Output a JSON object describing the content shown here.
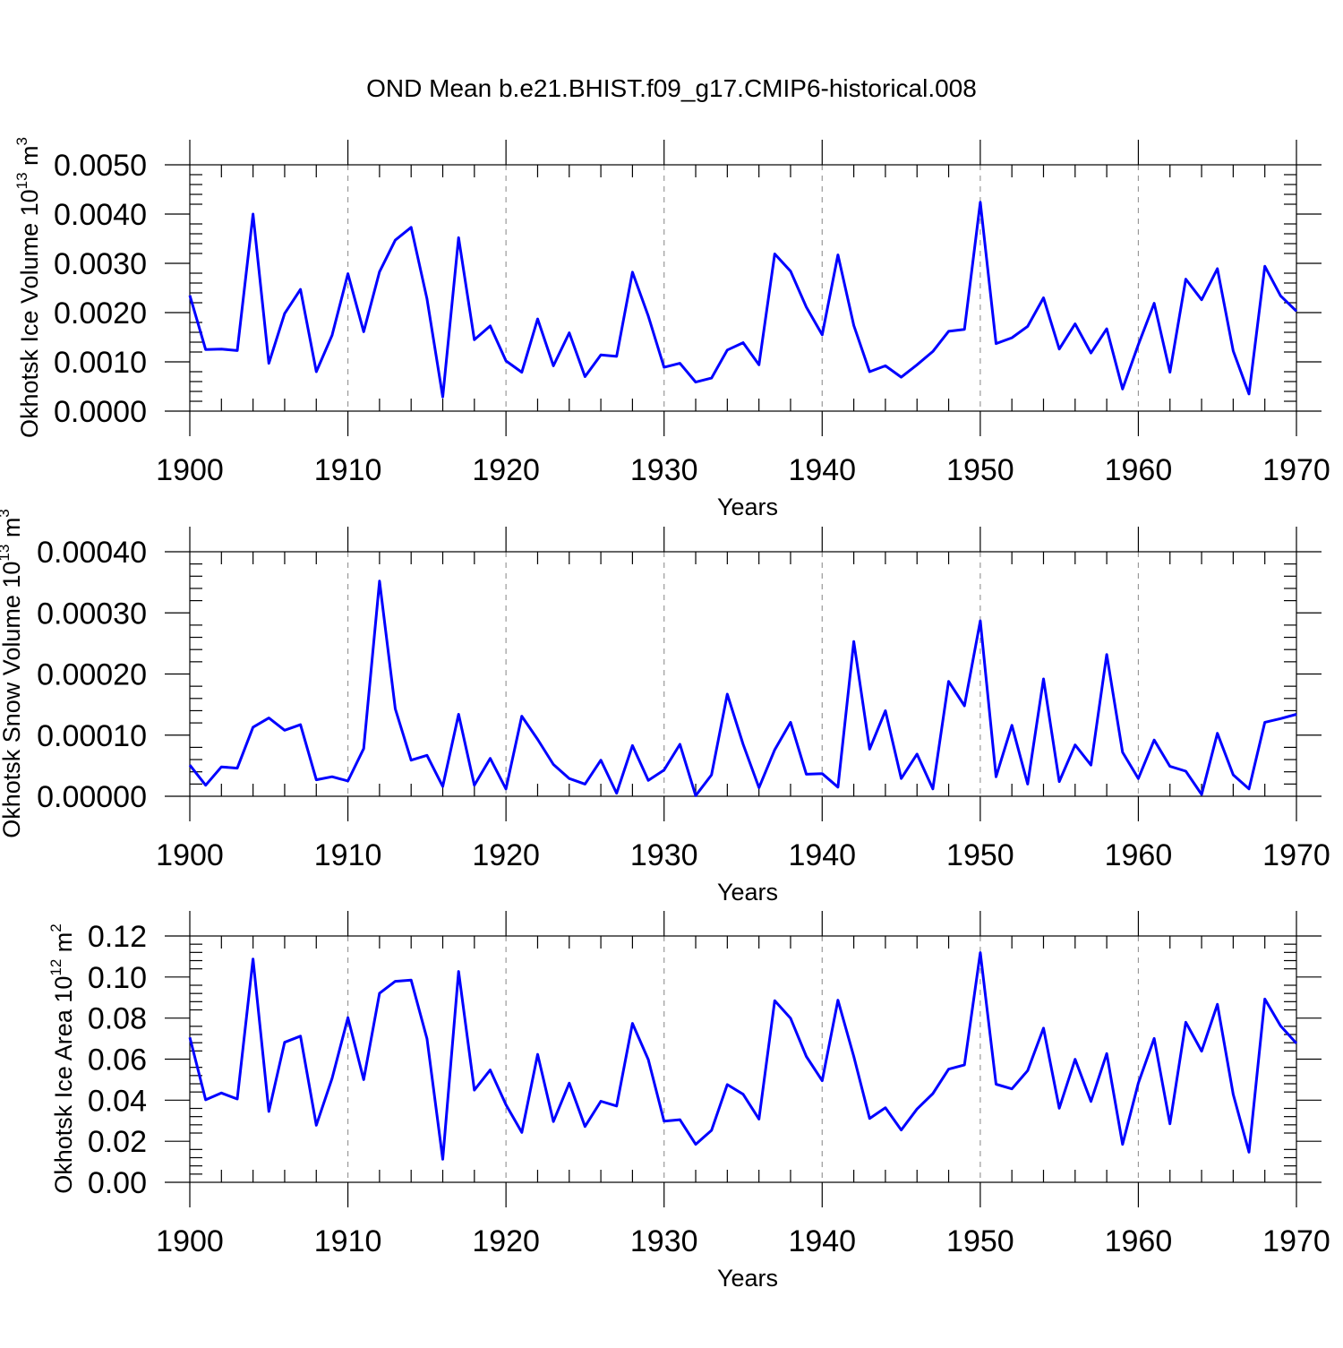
{
  "figure_title": "OND Mean b.e21.BHIST.f09_g17.CMIP6-historical.008",
  "chart_data": [
    {
      "type": "line",
      "title": "OND Mean b.e21.BHIST.f09_g17.CMIP6-historical.008",
      "ylabel": "Okhotsk Ice Volume 10",
      "ylabel_exp": "13",
      "ylabel_unit": " m",
      "ylabel_unit_exp": "3",
      "xlabel": "Years",
      "xlim": [
        1900,
        1970
      ],
      "ylim": [
        0,
        0.005
      ],
      "x_ticks": [
        1900,
        1910,
        1920,
        1930,
        1940,
        1950,
        1960,
        1970
      ],
      "x_tick_labels": [
        "1900",
        "1910",
        "1920",
        "1930",
        "1940",
        "1950",
        "1960",
        "1970"
      ],
      "y_ticks": [
        0,
        0.001,
        0.002,
        0.003,
        0.004,
        0.005
      ],
      "y_tick_labels": [
        "0.0000",
        "0.0010",
        "0.0020",
        "0.0030",
        "0.0040",
        "0.0050"
      ],
      "grid": "vertical dashed at decades",
      "line_color": "#0000ff",
      "x": [
        1900,
        1901,
        1902,
        1903,
        1904,
        1905,
        1906,
        1907,
        1908,
        1909,
        1910,
        1911,
        1912,
        1913,
        1914,
        1915,
        1916,
        1917,
        1918,
        1919,
        1920,
        1921,
        1922,
        1923,
        1924,
        1925,
        1926,
        1927,
        1928,
        1929,
        1930,
        1931,
        1932,
        1933,
        1934,
        1935,
        1936,
        1937,
        1938,
        1939,
        1940,
        1941,
        1942,
        1943,
        1944,
        1945,
        1946,
        1947,
        1948,
        1949,
        1950,
        1951,
        1952,
        1953,
        1954,
        1955,
        1956,
        1957,
        1958,
        1959,
        1960,
        1961,
        1962,
        1963,
        1964,
        1965,
        1966,
        1967,
        1968,
        1969,
        1970
      ],
      "values": [
        0.00235,
        0.00125,
        0.00126,
        0.00123,
        0.004,
        0.00097,
        0.00198,
        0.00247,
        0.0008,
        0.00154,
        0.00279,
        0.00161,
        0.00283,
        0.00347,
        0.00373,
        0.00228,
        0.00029,
        0.00352,
        0.00145,
        0.00173,
        0.00102,
        0.00079,
        0.00187,
        0.00092,
        0.00159,
        0.0007,
        0.00114,
        0.00111,
        0.00282,
        0.00193,
        0.00089,
        0.00097,
        0.00059,
        0.00067,
        0.00124,
        0.00139,
        0.00094,
        0.00319,
        0.00284,
        0.00211,
        0.00155,
        0.00317,
        0.00174,
        0.0008,
        0.00092,
        0.00069,
        0.00094,
        0.00121,
        0.00162,
        0.00166,
        0.00424,
        0.00137,
        0.00149,
        0.00172,
        0.0023,
        0.00126,
        0.00177,
        0.00118,
        0.00167,
        0.00045,
        0.00135,
        0.00219,
        0.00079,
        0.00268,
        0.00226,
        0.00289,
        0.00122,
        0.00035,
        0.00294,
        0.00234,
        0.00203
      ]
    },
    {
      "type": "line",
      "ylabel": "Okhotsk Snow Volume 10",
      "ylabel_exp": "13",
      "ylabel_unit": " m",
      "ylabel_unit_exp": "3",
      "xlabel": "Years",
      "xlim": [
        1900,
        1970
      ],
      "ylim": [
        0,
        0.0004
      ],
      "x_ticks": [
        1900,
        1910,
        1920,
        1930,
        1940,
        1950,
        1960,
        1970
      ],
      "x_tick_labels": [
        "1900",
        "1910",
        "1920",
        "1930",
        "1940",
        "1950",
        "1960",
        "1970"
      ],
      "y_ticks": [
        0,
        0.0001,
        0.0002,
        0.0003,
        0.0004
      ],
      "y_tick_labels": [
        "0.00000",
        "0.00010",
        "0.00020",
        "0.00030",
        "0.00040"
      ],
      "grid": "vertical dashed at decades",
      "line_color": "#0000ff",
      "x": [
        1900,
        1901,
        1902,
        1903,
        1904,
        1905,
        1906,
        1907,
        1908,
        1909,
        1910,
        1911,
        1912,
        1913,
        1914,
        1915,
        1916,
        1917,
        1918,
        1919,
        1920,
        1921,
        1922,
        1923,
        1924,
        1925,
        1926,
        1927,
        1928,
        1929,
        1930,
        1931,
        1932,
        1933,
        1934,
        1935,
        1936,
        1937,
        1938,
        1939,
        1940,
        1941,
        1942,
        1943,
        1944,
        1945,
        1946,
        1947,
        1948,
        1949,
        1950,
        1951,
        1952,
        1953,
        1954,
        1955,
        1956,
        1957,
        1958,
        1959,
        1960,
        1961,
        1962,
        1963,
        1964,
        1965,
        1966,
        1967,
        1968,
        1969,
        1970
      ],
      "values": [
        5.1e-05,
        1.8e-05,
        4.8e-05,
        4.6e-05,
        0.000113,
        0.000128,
        0.000108,
        0.000117,
        2.7e-05,
        3.2e-05,
        2.5e-05,
        7.8e-05,
        0.000352,
        0.000143,
        5.9e-05,
        6.7e-05,
        1.6e-05,
        0.000134,
        1.8e-05,
        6.2e-05,
        1.2e-05,
        0.000131,
        9.3e-05,
        5.2e-05,
        2.9e-05,
        2e-05,
        5.9e-05,
        5e-06,
        8.3e-05,
        2.6e-05,
        4.3e-05,
        8.5e-05,
        1e-06,
        3.5e-05,
        0.000167,
        8.5e-05,
        1.4e-05,
        7.6e-05,
        0.000121,
        3.6e-05,
        3.7e-05,
        1.5e-05,
        0.000253,
        7.7e-05,
        0.00014,
        2.9e-05,
        6.9e-05,
        1.2e-05,
        0.000188,
        0.000148,
        0.000287,
        3.2e-05,
        0.000116,
        2e-05,
        0.000192,
        2.4e-05,
        8.4e-05,
        5.1e-05,
        0.000232,
        7.2e-05,
        2.9e-05,
        9.2e-05,
        4.9e-05,
        4.1e-05,
        3e-06,
        0.000103,
        3.5e-05,
        1.2e-05,
        0.000121,
        0.000127,
        0.000134
      ]
    },
    {
      "type": "line",
      "ylabel": "Okhotsk Ice Area 10",
      "ylabel_exp": "12",
      "ylabel_unit": " m",
      "ylabel_unit_exp": "2",
      "xlabel": "Years",
      "xlim": [
        1900,
        1970
      ],
      "ylim": [
        0,
        0.12
      ],
      "x_ticks": [
        1900,
        1910,
        1920,
        1930,
        1940,
        1950,
        1960,
        1970
      ],
      "x_tick_labels": [
        "1900",
        "1910",
        "1920",
        "1930",
        "1940",
        "1950",
        "1960",
        "1970"
      ],
      "y_ticks": [
        0,
        0.02,
        0.04,
        0.06,
        0.08,
        0.1,
        0.12
      ],
      "y_tick_labels": [
        "0.00",
        "0.02",
        "0.04",
        "0.06",
        "0.08",
        "0.10",
        "0.12"
      ],
      "grid": "vertical dashed at decades",
      "line_color": "#0000ff",
      "x": [
        1900,
        1901,
        1902,
        1903,
        1904,
        1905,
        1906,
        1907,
        1908,
        1909,
        1910,
        1911,
        1912,
        1913,
        1914,
        1915,
        1916,
        1917,
        1918,
        1919,
        1920,
        1921,
        1922,
        1923,
        1924,
        1925,
        1926,
        1927,
        1928,
        1929,
        1930,
        1931,
        1932,
        1933,
        1934,
        1935,
        1936,
        1937,
        1938,
        1939,
        1940,
        1941,
        1942,
        1943,
        1944,
        1945,
        1946,
        1947,
        1948,
        1949,
        1950,
        1951,
        1952,
        1953,
        1954,
        1955,
        1956,
        1957,
        1958,
        1959,
        1960,
        1961,
        1962,
        1963,
        1964,
        1965,
        1966,
        1967,
        1968,
        1969,
        1970
      ],
      "values": [
        0.0706,
        0.0402,
        0.0435,
        0.0406,
        0.1088,
        0.0345,
        0.0682,
        0.0712,
        0.0278,
        0.0506,
        0.0802,
        0.05,
        0.0921,
        0.0979,
        0.0985,
        0.07,
        0.0112,
        0.1027,
        0.0449,
        0.0547,
        0.0378,
        0.0243,
        0.0623,
        0.0296,
        0.0483,
        0.0272,
        0.0395,
        0.0372,
        0.0774,
        0.0598,
        0.0298,
        0.0305,
        0.0185,
        0.0253,
        0.0476,
        0.0429,
        0.0308,
        0.0885,
        0.0799,
        0.0613,
        0.0495,
        0.0887,
        0.0613,
        0.0311,
        0.0363,
        0.0255,
        0.0357,
        0.0432,
        0.0551,
        0.0572,
        0.1119,
        0.0478,
        0.0455,
        0.0544,
        0.0751,
        0.0361,
        0.0599,
        0.0394,
        0.0627,
        0.0185,
        0.0483,
        0.0701,
        0.0285,
        0.078,
        0.0639,
        0.0867,
        0.0428,
        0.0147,
        0.0893,
        0.0762,
        0.0677
      ]
    }
  ]
}
